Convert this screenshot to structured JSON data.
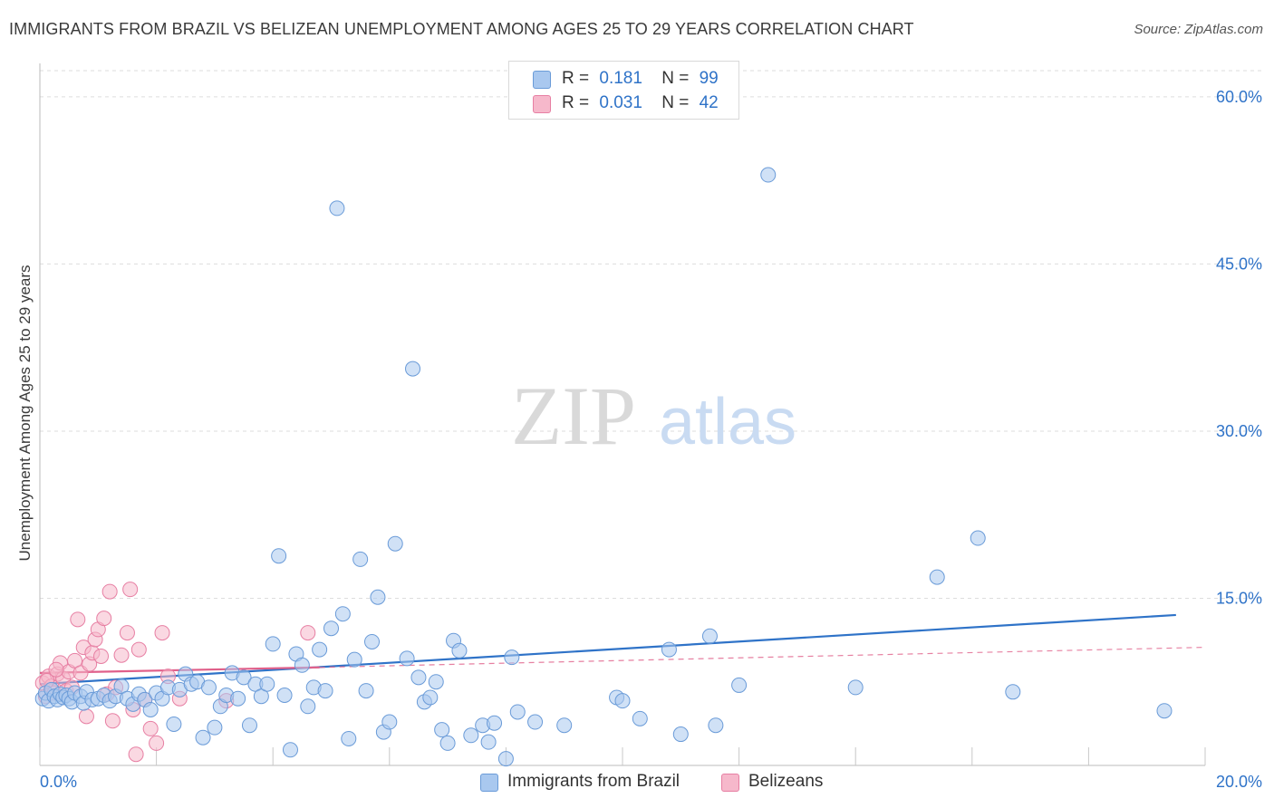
{
  "header": {
    "title": "IMMIGRANTS FROM BRAZIL VS BELIZEAN UNEMPLOYMENT AMONG AGES 25 TO 29 YEARS CORRELATION CHART",
    "source": "Source: ZipAtlas.com"
  },
  "watermark": {
    "zip": "ZIP",
    "atlas": "atlas"
  },
  "legend": {
    "series1": {
      "r_label": "R =",
      "r_value": "0.181",
      "n_label": "N =",
      "n_value": "99"
    },
    "series2": {
      "r_label": "R =",
      "r_value": "0.031",
      "n_label": "N =",
      "n_value": "42"
    }
  },
  "bottom_legend": {
    "series1": "Immigrants from Brazil",
    "series2": "Belizeans"
  },
  "colors": {
    "blue_fill": "#a9c8ef",
    "blue_stroke": "#6a9bd8",
    "blue_line": "#2f73c8",
    "pink_fill": "#f6b8cb",
    "pink_stroke": "#e77fa3",
    "pink_line": "#e0608a",
    "grid": "#dddddd",
    "axis_text": "#2f73c8"
  },
  "chart_data": {
    "type": "scatter",
    "title": "IMMIGRANTS FROM BRAZIL VS BELIZEAN UNEMPLOYMENT AMONG AGES 25 TO 29 YEARS CORRELATION CHART",
    "xlabel": "",
    "ylabel": "Unemployment Among Ages 25 to 29 years",
    "xlim": [
      0,
      20
    ],
    "ylim": [
      0,
      63
    ],
    "x_tick_labels": [
      "0.0%",
      "20.0%"
    ],
    "y_ticks": [
      15,
      30,
      45,
      60
    ],
    "y_tick_labels": [
      "15.0%",
      "30.0%",
      "45.0%",
      "60.0%"
    ],
    "grid": true,
    "legend_placement": "top-center",
    "series": [
      {
        "name": "Immigrants from Brazil",
        "trend": {
          "x": [
            0,
            19.5
          ],
          "y": [
            7.3,
            13.5
          ],
          "style": "solid"
        },
        "points": [
          [
            0.05,
            6.0
          ],
          [
            0.1,
            6.5
          ],
          [
            0.15,
            5.8
          ],
          [
            0.2,
            6.8
          ],
          [
            0.25,
            6.2
          ],
          [
            0.3,
            5.9
          ],
          [
            0.35,
            6.4
          ],
          [
            0.4,
            6.1
          ],
          [
            0.45,
            6.3
          ],
          [
            0.5,
            6.0
          ],
          [
            0.55,
            5.7
          ],
          [
            0.6,
            6.5
          ],
          [
            0.7,
            6.2
          ],
          [
            0.75,
            5.6
          ],
          [
            0.8,
            6.6
          ],
          [
            0.9,
            5.9
          ],
          [
            1.0,
            6.0
          ],
          [
            1.1,
            6.3
          ],
          [
            1.2,
            5.8
          ],
          [
            1.3,
            6.2
          ],
          [
            1.4,
            7.1
          ],
          [
            1.5,
            6.0
          ],
          [
            1.6,
            5.5
          ],
          [
            1.7,
            6.4
          ],
          [
            1.8,
            5.9
          ],
          [
            1.9,
            5.0
          ],
          [
            2.0,
            6.5
          ],
          [
            2.1,
            6.0
          ],
          [
            2.2,
            7.0
          ],
          [
            2.3,
            3.7
          ],
          [
            2.4,
            6.8
          ],
          [
            2.5,
            8.2
          ],
          [
            2.6,
            7.3
          ],
          [
            2.7,
            7.5
          ],
          [
            2.8,
            2.5
          ],
          [
            2.9,
            7.0
          ],
          [
            3.0,
            3.4
          ],
          [
            3.1,
            5.3
          ],
          [
            3.2,
            6.3
          ],
          [
            3.3,
            8.3
          ],
          [
            3.4,
            6.0
          ],
          [
            3.5,
            7.9
          ],
          [
            3.6,
            3.6
          ],
          [
            3.7,
            7.3
          ],
          [
            3.8,
            6.2
          ],
          [
            3.9,
            7.3
          ],
          [
            4.0,
            10.9
          ],
          [
            4.1,
            18.8
          ],
          [
            4.2,
            6.3
          ],
          [
            4.3,
            1.4
          ],
          [
            4.4,
            10.0
          ],
          [
            4.5,
            9.0
          ],
          [
            4.6,
            5.3
          ],
          [
            4.7,
            7.0
          ],
          [
            4.8,
            10.4
          ],
          [
            4.9,
            6.7
          ],
          [
            5.0,
            12.3
          ],
          [
            5.2,
            13.6
          ],
          [
            5.3,
            2.4
          ],
          [
            5.4,
            9.5
          ],
          [
            5.5,
            18.5
          ],
          [
            5.6,
            6.7
          ],
          [
            5.7,
            11.1
          ],
          [
            5.8,
            15.1
          ],
          [
            5.9,
            3.0
          ],
          [
            6.0,
            3.9
          ],
          [
            6.1,
            19.9
          ],
          [
            6.3,
            9.6
          ],
          [
            6.4,
            35.6
          ],
          [
            6.5,
            7.9
          ],
          [
            6.6,
            5.7
          ],
          [
            6.7,
            6.1
          ],
          [
            6.8,
            7.5
          ],
          [
            6.9,
            3.2
          ],
          [
            7.0,
            2.0
          ],
          [
            7.1,
            11.2
          ],
          [
            7.2,
            10.3
          ],
          [
            7.4,
            2.7
          ],
          [
            7.6,
            3.6
          ],
          [
            7.7,
            2.1
          ],
          [
            7.8,
            3.8
          ],
          [
            8.0,
            0.6
          ],
          [
            8.1,
            9.7
          ],
          [
            8.2,
            4.8
          ],
          [
            8.5,
            3.9
          ],
          [
            9.0,
            3.6
          ],
          [
            9.9,
            6.1
          ],
          [
            10.0,
            5.8
          ],
          [
            10.3,
            4.2
          ],
          [
            10.8,
            10.4
          ],
          [
            11.0,
            2.8
          ],
          [
            11.5,
            11.6
          ],
          [
            11.6,
            3.6
          ],
          [
            12.0,
            7.2
          ],
          [
            12.5,
            53.0
          ],
          [
            14.0,
            7.0
          ],
          [
            15.4,
            16.9
          ],
          [
            16.1,
            20.4
          ],
          [
            16.7,
            6.6
          ],
          [
            19.3,
            4.9
          ],
          [
            5.1,
            50.0
          ]
        ]
      },
      {
        "name": "Belizeans",
        "trend": {
          "x": [
            0,
            4.8
          ],
          "y": [
            8.3,
            8.8
          ],
          "style": "solid",
          "extended": {
            "x": [
              4.8,
              20
            ],
            "y": [
              8.8,
              10.6
            ],
            "style": "dashed"
          }
        },
        "points": [
          [
            0.05,
            7.4
          ],
          [
            0.1,
            6.2
          ],
          [
            0.15,
            8.0
          ],
          [
            0.2,
            7.1
          ],
          [
            0.25,
            6.5
          ],
          [
            0.3,
            8.2
          ],
          [
            0.35,
            9.2
          ],
          [
            0.4,
            7.8
          ],
          [
            0.45,
            6.7
          ],
          [
            0.5,
            8.4
          ],
          [
            0.55,
            7.0
          ],
          [
            0.6,
            9.4
          ],
          [
            0.65,
            13.1
          ],
          [
            0.7,
            8.3
          ],
          [
            0.75,
            10.6
          ],
          [
            0.8,
            4.4
          ],
          [
            0.85,
            9.1
          ],
          [
            0.9,
            10.1
          ],
          [
            0.95,
            11.3
          ],
          [
            1.0,
            12.2
          ],
          [
            1.05,
            9.8
          ],
          [
            1.1,
            13.2
          ],
          [
            1.15,
            6.4
          ],
          [
            1.2,
            15.6
          ],
          [
            1.25,
            4.0
          ],
          [
            1.3,
            7.0
          ],
          [
            1.4,
            9.9
          ],
          [
            1.5,
            11.9
          ],
          [
            1.55,
            15.8
          ],
          [
            1.6,
            5.0
          ],
          [
            1.65,
            1.0
          ],
          [
            1.7,
            10.4
          ],
          [
            1.8,
            5.9
          ],
          [
            1.9,
            3.3
          ],
          [
            2.0,
            2.0
          ],
          [
            2.1,
            11.9
          ],
          [
            2.2,
            8.0
          ],
          [
            2.4,
            6.0
          ],
          [
            3.2,
            5.8
          ],
          [
            4.6,
            11.9
          ],
          [
            0.12,
            7.6
          ],
          [
            0.28,
            8.6
          ]
        ]
      }
    ]
  }
}
